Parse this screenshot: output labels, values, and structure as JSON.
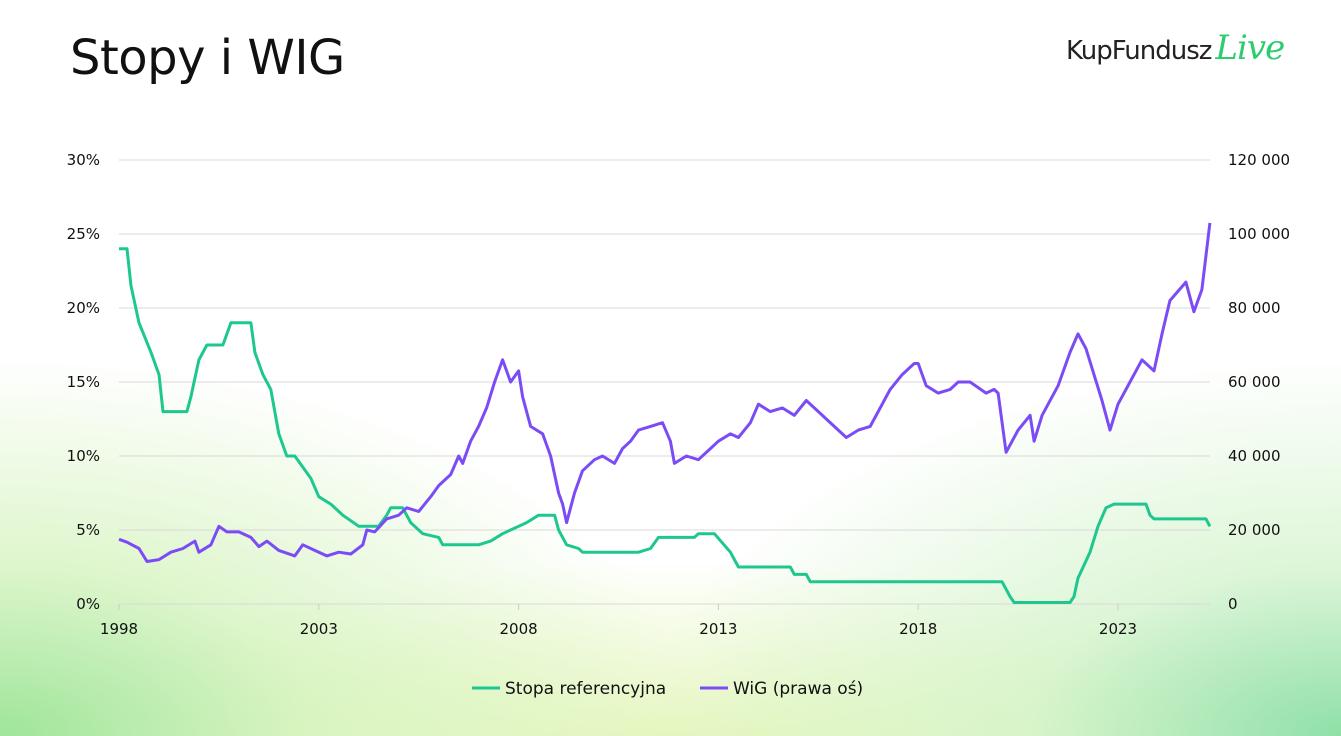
{
  "title": "Stopy i WIG",
  "logo": {
    "text": "KupFundusz",
    "accent": "Live"
  },
  "chart_data": {
    "type": "line",
    "title": "Stopy i WIG",
    "xlabel": "",
    "ylabel": "",
    "ylabel_right": "",
    "xlim": [
      1998,
      2025.5
    ],
    "x_ticks": [
      1998,
      2003,
      2008,
      2013,
      2018,
      2023
    ],
    "x_tick_labels": [
      "1998",
      "2003",
      "2008",
      "2013",
      "2018",
      "2023"
    ],
    "ylim": [
      0,
      30
    ],
    "y_ticks": [
      0,
      5,
      10,
      15,
      20,
      25,
      30
    ],
    "y_tick_labels": [
      "0%",
      "5%",
      "10%",
      "15%",
      "20%",
      "25%",
      "30%"
    ],
    "ylim_right": [
      0,
      120000
    ],
    "y_ticks_right": [
      0,
      20000,
      40000,
      60000,
      80000,
      100000,
      120000
    ],
    "y_tick_labels_right": [
      "0",
      "20 000",
      "40 000",
      "60 000",
      "80 000",
      "100 000",
      "120 000"
    ],
    "grid": true,
    "legend_position": "bottom",
    "series": [
      {
        "name": "Stopa referencyjna",
        "axis": "left",
        "color": "#1ec78f",
        "x": [
          1998.0,
          1998.2,
          1998.3,
          1998.5,
          1998.8,
          1999.0,
          1999.1,
          1999.7,
          1999.8,
          2000.0,
          2000.2,
          2000.6,
          2000.8,
          2001.3,
          2001.4,
          2001.6,
          2001.8,
          2002.0,
          2002.2,
          2002.4,
          2002.8,
          2003.0,
          2003.3,
          2003.6,
          2004.0,
          2004.5,
          2004.7,
          2004.8,
          2005.1,
          2005.3,
          2005.6,
          2006.0,
          2006.1,
          2007.0,
          2007.3,
          2007.6,
          2008.0,
          2008.2,
          2008.5,
          2008.9,
          2009.0,
          2009.2,
          2009.5,
          2009.6,
          2011.0,
          2011.3,
          2011.5,
          2012.4,
          2012.5,
          2012.9,
          2013.3,
          2013.4,
          2013.5,
          2014.8,
          2014.9,
          2015.2,
          2015.3,
          2020.1,
          2020.3,
          2020.4,
          2021.8,
          2021.9,
          2022.0,
          2022.3,
          2022.5,
          2022.7,
          2022.9,
          2023.7,
          2023.8,
          2023.9,
          2025.2,
          2025.3
        ],
        "values": [
          24,
          24,
          21.5,
          19,
          17,
          15.5,
          13,
          13,
          14,
          16.5,
          17.5,
          17.5,
          19,
          19,
          17,
          15.5,
          14.5,
          11.5,
          10,
          10,
          8.5,
          7.25,
          6.75,
          6,
          5.25,
          5.25,
          6,
          6.5,
          6.5,
          5.5,
          4.75,
          4.5,
          4,
          4,
          4.25,
          4.75,
          5.25,
          5.5,
          6,
          6,
          5,
          4,
          3.75,
          3.5,
          3.5,
          3.75,
          4.5,
          4.5,
          4.75,
          4.75,
          3.5,
          3,
          2.5,
          2.5,
          2,
          2,
          1.5,
          1.5,
          0.5,
          0.1,
          0.1,
          0.5,
          1.75,
          3.5,
          5.25,
          6.5,
          6.75,
          6.75,
          6,
          5.75,
          5.75,
          5.25
        ]
      },
      {
        "name": "WiG (prawa oś)",
        "axis": "right",
        "color": "#7b4cf5",
        "x": [
          1998.0,
          1998.2,
          1998.5,
          1998.7,
          1999.0,
          1999.3,
          1999.6,
          1999.9,
          2000.0,
          2000.3,
          2000.5,
          2000.7,
          2001.0,
          2001.3,
          2001.5,
          2001.7,
          2002.0,
          2002.4,
          2002.6,
          2002.9,
          2003.2,
          2003.5,
          2003.8,
          2004.1,
          2004.2,
          2004.4,
          2004.7,
          2005.0,
          2005.2,
          2005.5,
          2005.8,
          2006.0,
          2006.3,
          2006.5,
          2006.6,
          2006.8,
          2007.0,
          2007.2,
          2007.4,
          2007.6,
          2007.8,
          2008.0,
          2008.1,
          2008.3,
          2008.6,
          2008.8,
          2009.0,
          2009.1,
          2009.2,
          2009.4,
          2009.6,
          2009.9,
          2010.1,
          2010.4,
          2010.6,
          2010.8,
          2011.0,
          2011.3,
          2011.6,
          2011.8,
          2011.9,
          2012.2,
          2012.5,
          2012.8,
          2013.0,
          2013.3,
          2013.5,
          2013.8,
          2014.0,
          2014.3,
          2014.6,
          2014.9,
          2015.2,
          2015.4,
          2015.7,
          2016.0,
          2016.2,
          2016.5,
          2016.8,
          2017.0,
          2017.3,
          2017.6,
          2017.9,
          2018.0,
          2018.2,
          2018.5,
          2018.8,
          2019.0,
          2019.3,
          2019.7,
          2019.9,
          2020.0,
          2020.2,
          2020.5,
          2020.8,
          2020.9,
          2021.1,
          2021.5,
          2021.8,
          2022.0,
          2022.2,
          2022.4,
          2022.6,
          2022.8,
          2023.0,
          2023.3,
          2023.6,
          2023.9,
          2024.1,
          2024.3,
          2024.7,
          2024.9,
          2025.1,
          2025.3
        ],
        "values": [
          17500,
          16700,
          15000,
          11500,
          12000,
          14000,
          15000,
          17000,
          14000,
          16000,
          21000,
          19500,
          19500,
          18000,
          15500,
          17000,
          14500,
          13000,
          16000,
          14500,
          13000,
          14000,
          13500,
          16000,
          20000,
          19500,
          23000,
          24000,
          26000,
          25000,
          29000,
          32000,
          35000,
          40000,
          38000,
          44000,
          48000,
          53000,
          60000,
          66000,
          60000,
          63000,
          56000,
          48000,
          46000,
          40000,
          30000,
          27000,
          22000,
          30000,
          36000,
          39000,
          40000,
          38000,
          42000,
          44000,
          47000,
          48000,
          49000,
          44000,
          38000,
          40000,
          39000,
          42000,
          44000,
          46000,
          45000,
          49000,
          54000,
          52000,
          53000,
          51000,
          55000,
          53000,
          50000,
          47000,
          45000,
          47000,
          48000,
          52000,
          58000,
          62000,
          65000,
          65000,
          59000,
          57000,
          58000,
          60000,
          60000,
          57000,
          58000,
          57000,
          41000,
          47000,
          51000,
          44000,
          51000,
          59000,
          68000,
          73000,
          69000,
          62000,
          55000,
          47000,
          54000,
          60000,
          66000,
          63000,
          73000,
          82000,
          87000,
          79000,
          85000,
          103000
        ]
      }
    ]
  }
}
